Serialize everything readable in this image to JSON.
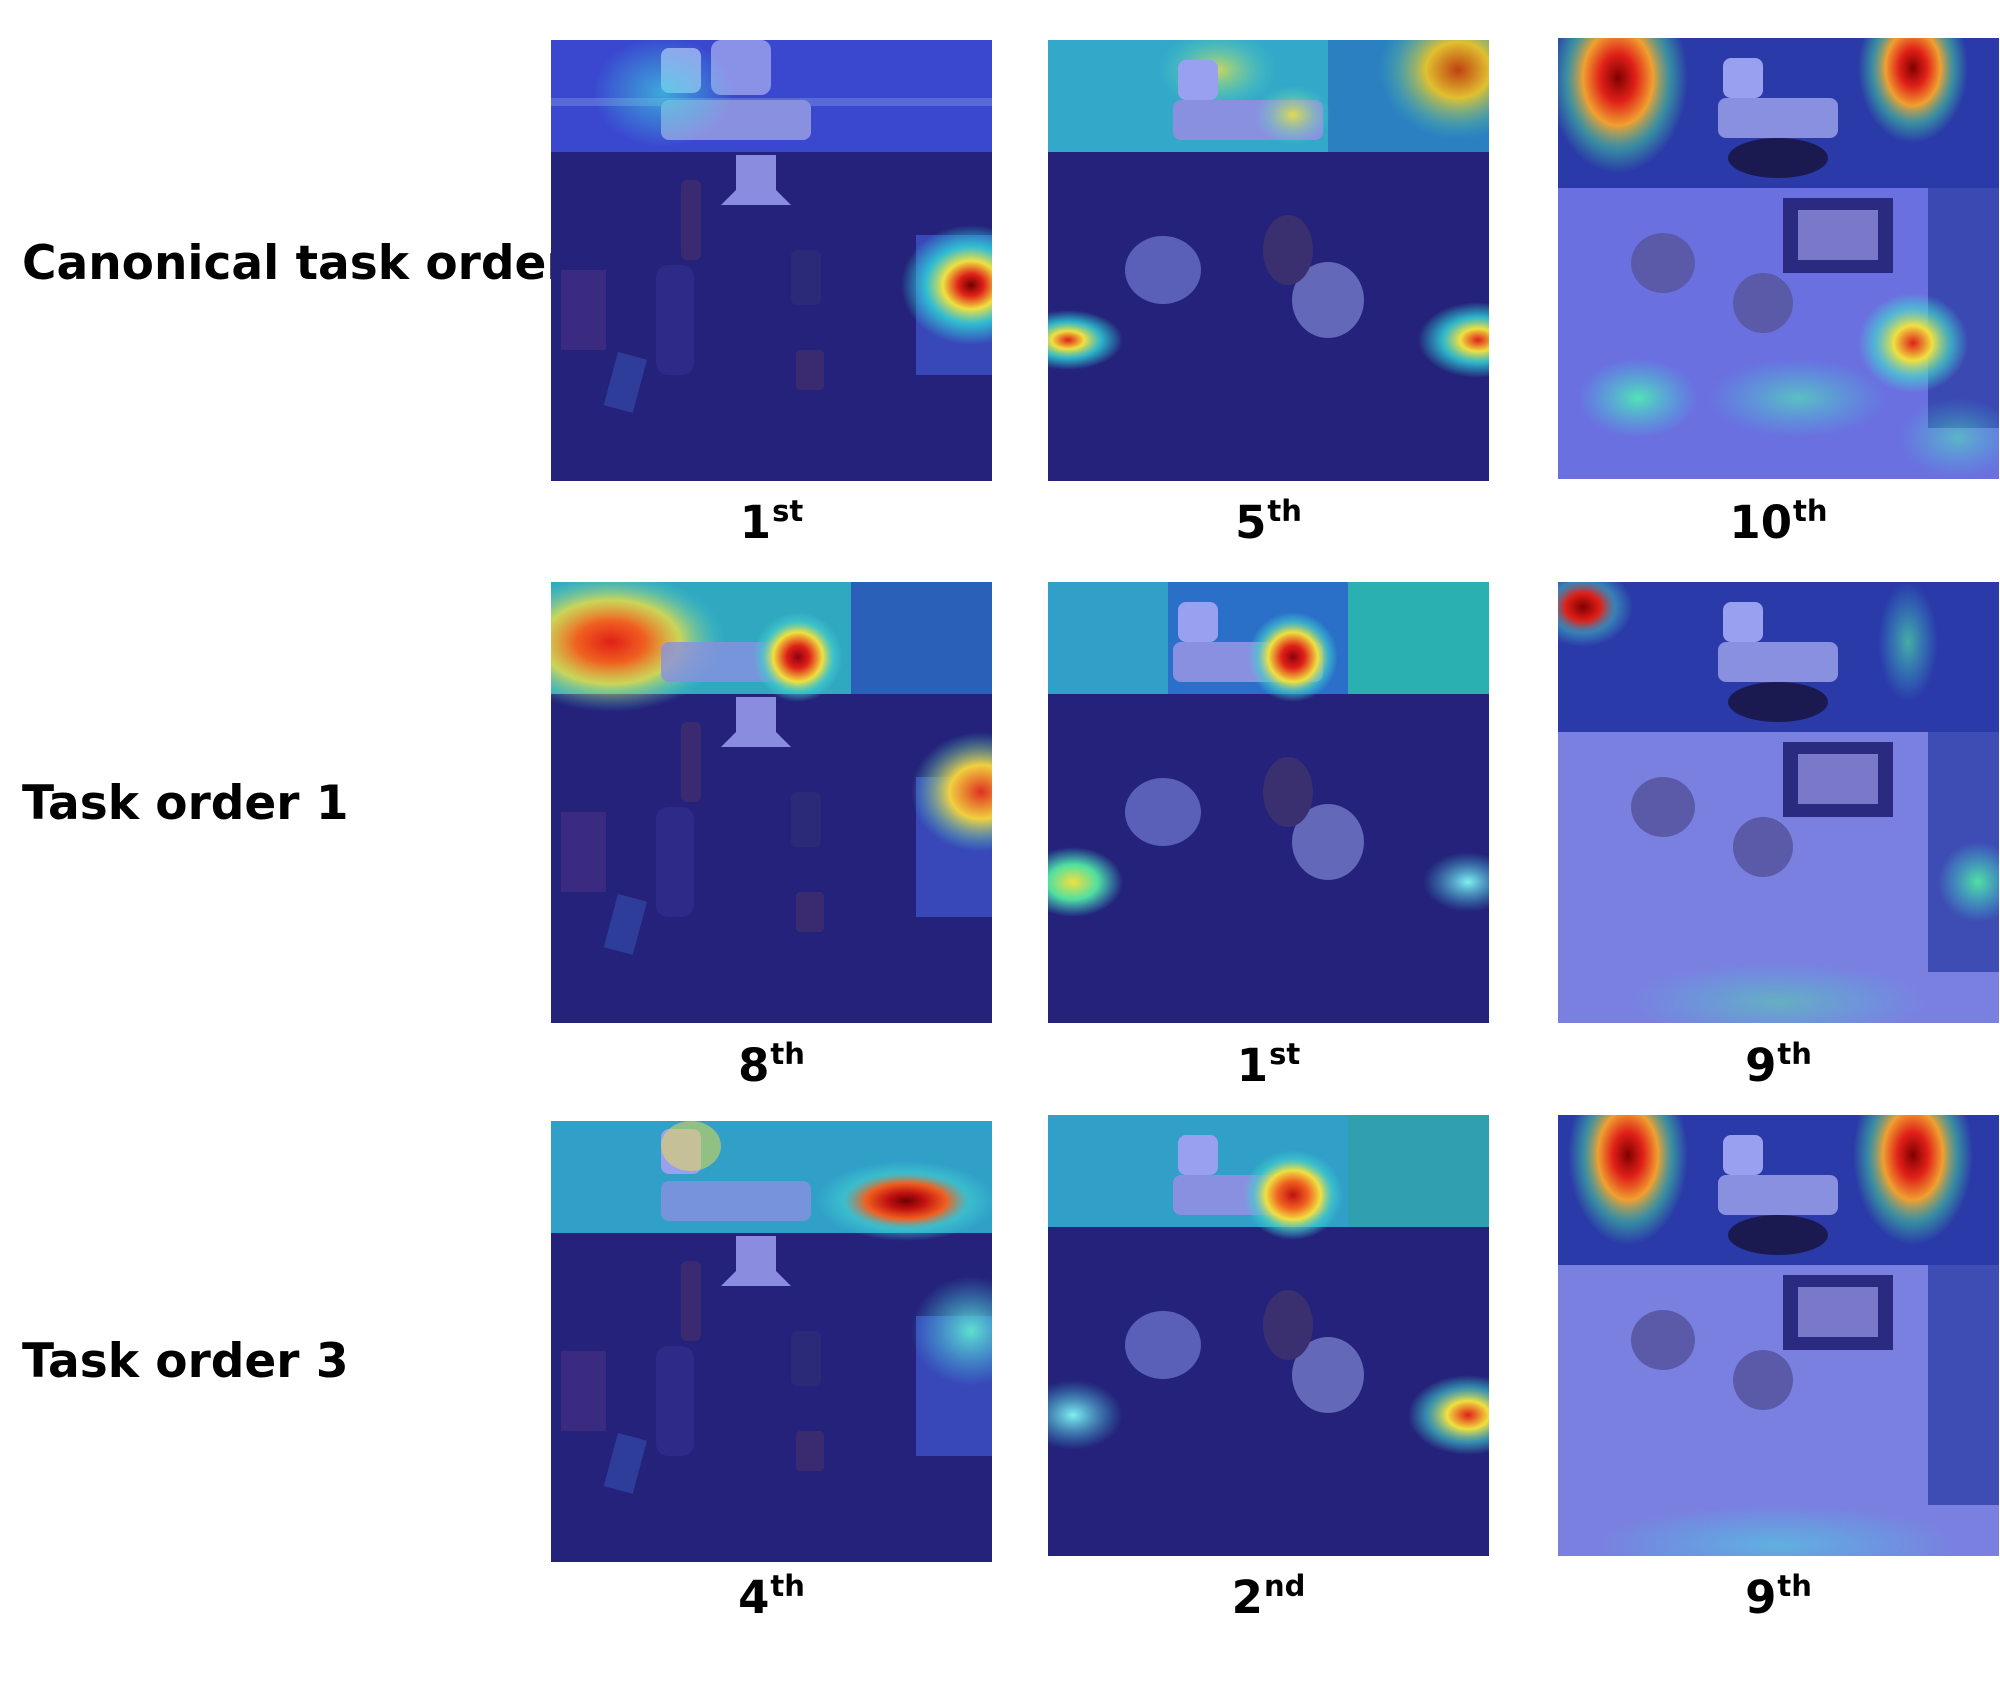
{
  "rows": [
    {
      "label": "Canonical task order",
      "panels": [
        {
          "scene": "shelf-scene",
          "rank_num": "1",
          "rank_suffix": "st"
        },
        {
          "scene": "mugs-scene",
          "rank_num": "5",
          "rank_suffix": "th"
        },
        {
          "scene": "plate-scene",
          "rank_num": "10",
          "rank_suffix": "th"
        }
      ]
    },
    {
      "label": "Task order 1",
      "panels": [
        {
          "scene": "shelf-scene",
          "rank_num": "8",
          "rank_suffix": "th"
        },
        {
          "scene": "mugs-scene",
          "rank_num": "1",
          "rank_suffix": "st"
        },
        {
          "scene": "plate-scene",
          "rank_num": "9",
          "rank_suffix": "th"
        }
      ]
    },
    {
      "label": "Task order 3",
      "panels": [
        {
          "scene": "shelf-scene",
          "rank_num": "4",
          "rank_suffix": "th"
        },
        {
          "scene": "mugs-scene",
          "rank_num": "2",
          "rank_suffix": "nd"
        },
        {
          "scene": "plate-scene",
          "rank_num": "9",
          "rank_suffix": "th"
        }
      ]
    }
  ],
  "colors": {
    "heat_low": "#1f1fa8",
    "heat_mid": "#2fd0d8",
    "heat_warm": "#f0e040",
    "heat_high": "#e02018",
    "heat_max": "#800000",
    "table_dark": "#24227a",
    "wall": "#4a5ad8"
  }
}
